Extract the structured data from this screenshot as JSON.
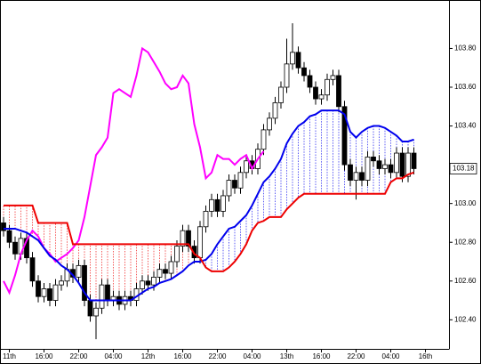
{
  "chart_data": {
    "type": "candlestick",
    "categories": [
      null,
      "11th",
      null,
      null,
      null,
      null,
      null,
      "16:00",
      null,
      null,
      null,
      null,
      null,
      "22:00",
      null,
      null,
      null,
      null,
      null,
      "04:00",
      null,
      null,
      null,
      null,
      null,
      "12th",
      null,
      null,
      null,
      null,
      null,
      "16:00",
      null,
      null,
      null,
      null,
      null,
      "22:00",
      null,
      null,
      null,
      null,
      null,
      "04:00",
      null,
      null,
      null,
      null,
      null,
      "13th",
      null,
      null,
      null,
      null,
      null,
      "16:00",
      null,
      null,
      null,
      null,
      null,
      "22:00",
      null,
      null,
      null,
      null,
      null,
      "04:00",
      null,
      null,
      null,
      null,
      null,
      "16th",
      null
    ],
    "ohlc": {
      "open": [
        102.9,
        102.86,
        102.8,
        102.74,
        102.82,
        102.72,
        102.6,
        102.52,
        102.56,
        102.5,
        102.58,
        102.6,
        102.66,
        102.62,
        102.68,
        102.5,
        102.42,
        102.46,
        102.58,
        102.5,
        102.52,
        102.48,
        102.52,
        102.5,
        102.56,
        102.6,
        102.58,
        102.62,
        102.66,
        102.64,
        102.7,
        102.78,
        102.86,
        102.78,
        102.72,
        102.88,
        102.96,
        103.02,
        102.96,
        103.04,
        103.12,
        103.08,
        103.16,
        103.22,
        103.18,
        103.28,
        103.38,
        103.44,
        103.52,
        103.6,
        103.72,
        103.78,
        103.7,
        103.66,
        103.6,
        103.54,
        103.56,
        103.64,
        103.66,
        103.5,
        103.2,
        103.12,
        103.16,
        103.12,
        103.24,
        103.22,
        103.18,
        103.2,
        103.16,
        103.26,
        103.14,
        103.26,
        null,
        null,
        null
      ],
      "high": [
        102.93,
        102.89,
        102.83,
        102.85,
        102.85,
        102.75,
        102.63,
        102.59,
        102.59,
        102.61,
        102.63,
        102.69,
        102.69,
        102.71,
        102.71,
        102.53,
        102.49,
        102.61,
        102.61,
        102.55,
        102.55,
        102.55,
        102.55,
        102.59,
        102.63,
        102.63,
        102.65,
        102.69,
        102.69,
        102.73,
        102.81,
        102.89,
        102.89,
        102.81,
        102.91,
        102.99,
        103.05,
        103.05,
        103.07,
        103.15,
        103.15,
        103.19,
        103.25,
        103.25,
        103.31,
        103.41,
        103.47,
        103.55,
        103.63,
        103.85,
        103.93,
        103.81,
        103.73,
        103.69,
        103.63,
        103.59,
        103.67,
        103.69,
        103.69,
        103.53,
        103.23,
        103.19,
        103.19,
        103.27,
        103.27,
        103.25,
        103.23,
        103.23,
        103.29,
        103.29,
        103.29,
        103.29,
        null,
        null,
        null
      ],
      "low": [
        102.83,
        102.77,
        102.71,
        102.71,
        102.69,
        102.57,
        102.49,
        102.49,
        102.47,
        102.47,
        102.55,
        102.57,
        102.59,
        102.59,
        102.47,
        102.39,
        102.3,
        102.43,
        102.47,
        102.47,
        102.45,
        102.45,
        102.47,
        102.47,
        102.53,
        102.55,
        102.55,
        102.59,
        102.61,
        102.61,
        102.67,
        102.75,
        102.75,
        102.69,
        102.69,
        102.85,
        102.93,
        102.93,
        102.93,
        103.01,
        103.05,
        103.05,
        103.13,
        103.15,
        103.15,
        103.25,
        103.35,
        103.41,
        103.49,
        103.57,
        103.69,
        103.67,
        103.63,
        103.57,
        103.51,
        103.51,
        103.53,
        103.61,
        103.47,
        103.17,
        103.09,
        103.02,
        103.09,
        103.09,
        103.19,
        103.15,
        103.15,
        103.13,
        103.13,
        103.11,
        103.11,
        103.15,
        null,
        null,
        null
      ],
      "close": [
        102.86,
        102.8,
        102.74,
        102.82,
        102.72,
        102.6,
        102.52,
        102.56,
        102.5,
        102.58,
        102.6,
        102.66,
        102.62,
        102.68,
        102.5,
        102.42,
        102.46,
        102.58,
        102.5,
        102.52,
        102.48,
        102.52,
        102.5,
        102.56,
        102.6,
        102.58,
        102.62,
        102.66,
        102.64,
        102.7,
        102.78,
        102.86,
        102.78,
        102.72,
        102.88,
        102.96,
        103.02,
        102.96,
        103.04,
        103.12,
        103.08,
        103.16,
        103.22,
        103.18,
        103.28,
        103.38,
        103.44,
        103.52,
        103.6,
        103.72,
        103.78,
        103.7,
        103.66,
        103.6,
        103.54,
        103.56,
        103.64,
        103.66,
        103.5,
        103.2,
        103.12,
        103.16,
        103.12,
        103.24,
        103.22,
        103.18,
        103.2,
        103.16,
        103.26,
        103.14,
        103.26,
        103.18,
        null,
        null,
        null
      ]
    },
    "lines": [
      {
        "color": "#ff00ff",
        "values": [
          102.6,
          102.54,
          102.63,
          102.74,
          102.81,
          102.86,
          102.83,
          102.77,
          102.74,
          102.7,
          102.72,
          102.74,
          102.77,
          102.81,
          102.93,
          103.09,
          103.25,
          103.29,
          103.34,
          103.57,
          103.59,
          103.57,
          103.55,
          103.66,
          103.8,
          103.78,
          103.73,
          103.68,
          103.62,
          103.59,
          103.6,
          103.66,
          103.62,
          103.41,
          103.29,
          103.13,
          103.16,
          103.25,
          103.23,
          103.23,
          103.2,
          103.23,
          103.25,
          103.18,
          103.23,
          103.27,
          null,
          null,
          null,
          null,
          null,
          null,
          null,
          null,
          null,
          null,
          null,
          null,
          null,
          null,
          null,
          null,
          null,
          null,
          null,
          null,
          null,
          null,
          null,
          null,
          null,
          null,
          null,
          null,
          null
        ]
      },
      {
        "color": "#0000ee",
        "values": [
          102.87,
          102.87,
          102.87,
          102.86,
          102.85,
          102.83,
          102.81,
          102.77,
          102.73,
          102.71,
          102.68,
          102.66,
          102.63,
          102.59,
          102.54,
          102.5,
          102.5,
          102.5,
          102.5,
          102.5,
          102.5,
          102.5,
          102.5,
          102.52,
          102.54,
          102.56,
          102.57,
          102.59,
          102.6,
          102.61,
          102.63,
          102.65,
          102.68,
          102.7,
          102.7,
          102.71,
          102.74,
          102.79,
          102.83,
          102.87,
          102.88,
          102.91,
          102.94,
          102.99,
          103.05,
          103.11,
          103.14,
          103.18,
          103.23,
          103.31,
          103.36,
          103.4,
          103.42,
          103.45,
          103.46,
          103.48,
          103.48,
          103.48,
          103.48,
          103.46,
          103.37,
          103.34,
          103.37,
          103.39,
          103.4,
          103.4,
          103.39,
          103.37,
          103.35,
          103.32,
          103.32,
          103.33,
          null,
          null,
          null
        ]
      },
      {
        "color": "#ee0000",
        "values": [
          102.99,
          102.99,
          102.99,
          102.99,
          102.99,
          102.99,
          102.9,
          102.9,
          102.9,
          102.9,
          102.9,
          102.9,
          102.79,
          102.79,
          102.79,
          102.79,
          102.79,
          102.79,
          102.79,
          102.79,
          102.79,
          102.79,
          102.79,
          102.79,
          102.79,
          102.79,
          102.79,
          102.79,
          102.79,
          102.79,
          102.79,
          102.79,
          102.79,
          102.74,
          102.72,
          102.67,
          102.65,
          102.65,
          102.65,
          102.67,
          102.7,
          102.74,
          102.79,
          102.86,
          102.9,
          102.91,
          102.93,
          102.93,
          102.93,
          102.97,
          103.0,
          103.03,
          103.05,
          103.05,
          103.05,
          103.05,
          103.05,
          103.05,
          103.05,
          103.05,
          103.05,
          103.05,
          103.05,
          103.05,
          103.05,
          103.05,
          103.05,
          103.11,
          103.13,
          103.13,
          103.15,
          103.16,
          null,
          null,
          null
        ]
      }
    ],
    "ylim": [
      102.25,
      104.05
    ],
    "yticks": [
      {
        "value": 102.4,
        "label": "102.40"
      },
      {
        "value": 102.6,
        "label": "102.60"
      },
      {
        "value": 102.8,
        "label": "102.80"
      },
      {
        "value": 103.0,
        "label": "103.00"
      },
      {
        "value": 103.4,
        "label": "103.40"
      },
      {
        "value": 103.6,
        "label": "103.60"
      },
      {
        "value": 103.8,
        "label": "103.80"
      }
    ],
    "last_price": 103.18
  }
}
